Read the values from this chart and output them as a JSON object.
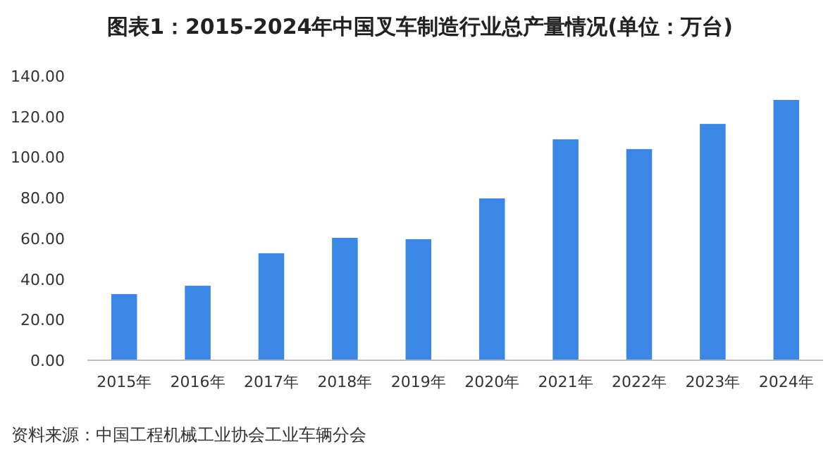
{
  "chart_data": {
    "type": "bar",
    "title": "图表1：2015-2024年中国叉车制造行业总产量情况(单位：万台)",
    "categories": [
      "2015年",
      "2016年",
      "2017年",
      "2018年",
      "2019年",
      "2020年",
      "2021年",
      "2022年",
      "2023年",
      "2024年"
    ],
    "values": [
      32.6,
      36.7,
      52.7,
      60.3,
      59.6,
      79.7,
      108.8,
      104,
      116.4,
      128.2
    ],
    "color": "#3b87e6",
    "ylim": [
      0,
      140
    ],
    "yticks": [
      {
        "value": 0,
        "label": "0.00"
      },
      {
        "value": 20,
        "label": "20.00"
      },
      {
        "value": 40,
        "label": "40.00"
      },
      {
        "value": 60,
        "label": "60.00"
      },
      {
        "value": 80,
        "label": "80.00"
      },
      {
        "value": 100,
        "label": "100.00"
      },
      {
        "value": 120,
        "label": "120.00"
      },
      {
        "value": 140,
        "label": "140.00"
      }
    ],
    "grid": false,
    "annotations": [
      "资料来源：中国工程机械工业协会工业车辆分会"
    ]
  }
}
